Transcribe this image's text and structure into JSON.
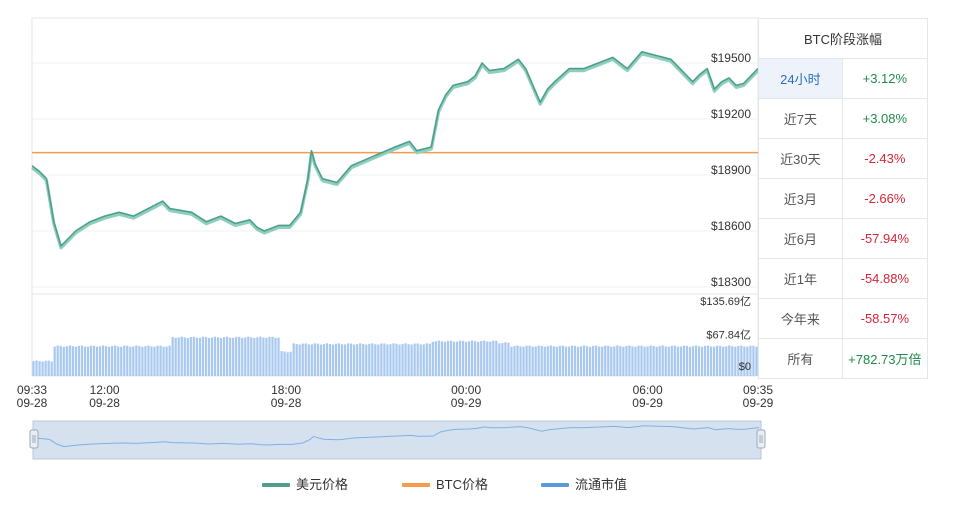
{
  "table": {
    "header": "BTC阶段涨幅",
    "rows": [
      {
        "period": "24小时",
        "change": "+3.12%",
        "trend": "up",
        "active": true
      },
      {
        "period": "近7天",
        "change": "+3.08%",
        "trend": "up",
        "active": false
      },
      {
        "period": "近30天",
        "change": "-2.43%",
        "trend": "down",
        "active": false
      },
      {
        "period": "近3月",
        "change": "-2.66%",
        "trend": "down",
        "active": false
      },
      {
        "period": "近6月",
        "change": "-57.94%",
        "trend": "down",
        "active": false
      },
      {
        "period": "近1年",
        "change": "-54.88%",
        "trend": "down",
        "active": false
      },
      {
        "period": "今年来",
        "change": "-58.57%",
        "trend": "down",
        "active": false
      },
      {
        "period": "所有",
        "change": "+782.73万倍",
        "trend": "up",
        "active": false
      }
    ]
  },
  "colors": {
    "usd_price": "#4f9e8a",
    "usd_price_light": "#8fcfc0",
    "btc_price": "#f39c4f",
    "market_cap": "#5b9bdc",
    "market_cap_bar": "#a8c8ef"
  },
  "chart_data": {
    "type": "line",
    "price_axis": {
      "ticks": [
        "$19500",
        "$19200",
        "$18900",
        "$18600",
        "$18300"
      ],
      "ylim": [
        18300,
        19650
      ]
    },
    "volume_axis": {
      "ticks": [
        "$135.69亿",
        "$67.84亿",
        "$0"
      ],
      "ylim": [
        0,
        135.69
      ]
    },
    "x_ticks": [
      {
        "time": "09:33",
        "date": "09-28",
        "t": 0
      },
      {
        "time": "12:00",
        "date": "09-28",
        "t": 0.1
      },
      {
        "time": "18:00",
        "date": "09-28",
        "t": 0.35
      },
      {
        "time": "00:00",
        "date": "09-29",
        "t": 0.598
      },
      {
        "time": "06:00",
        "date": "09-29",
        "t": 0.848
      },
      {
        "time": "09:35",
        "date": "09-29",
        "t": 1
      }
    ],
    "btc_price_level": 19020,
    "series": [
      {
        "name": "美元价格",
        "points": [
          [
            0,
            18950
          ],
          [
            0.01,
            18920
          ],
          [
            0.02,
            18880
          ],
          [
            0.03,
            18650
          ],
          [
            0.04,
            18520
          ],
          [
            0.05,
            18560
          ],
          [
            0.06,
            18600
          ],
          [
            0.08,
            18650
          ],
          [
            0.1,
            18680
          ],
          [
            0.12,
            18700
          ],
          [
            0.14,
            18680
          ],
          [
            0.16,
            18720
          ],
          [
            0.18,
            18760
          ],
          [
            0.19,
            18720
          ],
          [
            0.22,
            18700
          ],
          [
            0.24,
            18650
          ],
          [
            0.26,
            18680
          ],
          [
            0.28,
            18640
          ],
          [
            0.3,
            18660
          ],
          [
            0.31,
            18620
          ],
          [
            0.32,
            18600
          ],
          [
            0.34,
            18630
          ],
          [
            0.355,
            18630
          ],
          [
            0.37,
            18700
          ],
          [
            0.38,
            18880
          ],
          [
            0.385,
            19030
          ],
          [
            0.39,
            18960
          ],
          [
            0.4,
            18880
          ],
          [
            0.42,
            18860
          ],
          [
            0.44,
            18950
          ],
          [
            0.47,
            19000
          ],
          [
            0.5,
            19050
          ],
          [
            0.52,
            19080
          ],
          [
            0.53,
            19030
          ],
          [
            0.55,
            19050
          ],
          [
            0.56,
            19250
          ],
          [
            0.57,
            19330
          ],
          [
            0.58,
            19380
          ],
          [
            0.6,
            19400
          ],
          [
            0.61,
            19430
          ],
          [
            0.62,
            19500
          ],
          [
            0.63,
            19460
          ],
          [
            0.65,
            19470
          ],
          [
            0.67,
            19520
          ],
          [
            0.68,
            19470
          ],
          [
            0.69,
            19380
          ],
          [
            0.7,
            19290
          ],
          [
            0.71,
            19360
          ],
          [
            0.72,
            19400
          ],
          [
            0.74,
            19470
          ],
          [
            0.76,
            19470
          ],
          [
            0.78,
            19500
          ],
          [
            0.8,
            19530
          ],
          [
            0.82,
            19470
          ],
          [
            0.84,
            19560
          ],
          [
            0.86,
            19540
          ],
          [
            0.88,
            19520
          ],
          [
            0.89,
            19480
          ],
          [
            0.9,
            19440
          ],
          [
            0.91,
            19400
          ],
          [
            0.92,
            19440
          ],
          [
            0.93,
            19470
          ],
          [
            0.94,
            19360
          ],
          [
            0.95,
            19400
          ],
          [
            0.96,
            19420
          ],
          [
            0.97,
            19380
          ],
          [
            0.98,
            19390
          ],
          [
            0.99,
            19430
          ],
          [
            1.0,
            19470
          ]
        ]
      },
      {
        "name": "BTC价格",
        "constant": 19020
      },
      {
        "name": "流通市值",
        "segments": [
          {
            "from": 0,
            "to": 0.03,
            "value": 27
          },
          {
            "from": 0.03,
            "to": 0.19,
            "value": 54
          },
          {
            "from": 0.19,
            "to": 0.34,
            "value": 70
          },
          {
            "from": 0.34,
            "to": 0.36,
            "value": 44
          },
          {
            "from": 0.36,
            "to": 0.55,
            "value": 58
          },
          {
            "from": 0.55,
            "to": 0.64,
            "value": 63
          },
          {
            "from": 0.64,
            "to": 0.66,
            "value": 60
          },
          {
            "from": 0.66,
            "to": 1.0,
            "value": 54
          }
        ]
      }
    ],
    "legend": [
      {
        "label": "美元价格",
        "color_key": "usd_price"
      },
      {
        "label": "BTC价格",
        "color_key": "btc_price"
      },
      {
        "label": "流通市值",
        "color_key": "market_cap"
      }
    ]
  }
}
